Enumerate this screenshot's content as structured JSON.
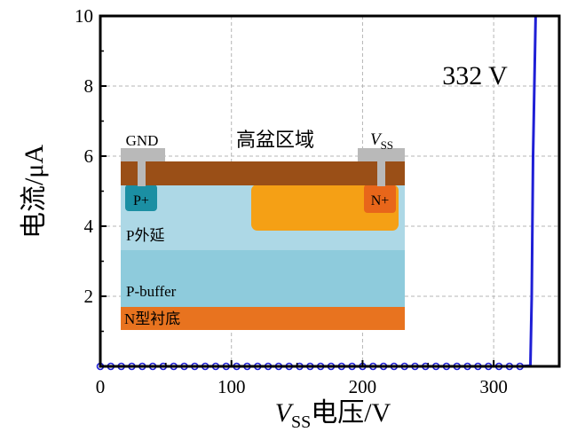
{
  "chart_data": {
    "type": "line",
    "xlabel": {
      "symbol": "V",
      "subscript": "SS",
      "text": "电压/V"
    },
    "ylabel": "电流/μA",
    "xlim": [
      0,
      350
    ],
    "ylim": [
      0,
      10
    ],
    "xticks": [
      "0",
      "100",
      "200",
      "300"
    ],
    "yticks": [
      "2",
      "4",
      "6",
      "8",
      "10"
    ],
    "grid": true,
    "annotation": "332 V",
    "series": [
      {
        "color": "#1f1fd6",
        "marker": "circle",
        "x": [
          0,
          8,
          16,
          24,
          32,
          40,
          48,
          56,
          64,
          72,
          80,
          88,
          96,
          104,
          112,
          120,
          128,
          136,
          144,
          152,
          160,
          168,
          176,
          184,
          192,
          200,
          208,
          216,
          224,
          232,
          240,
          248,
          256,
          264,
          272,
          280,
          288,
          296,
          304,
          312,
          320,
          328,
          329,
          330,
          332
        ],
        "y": [
          0,
          0,
          0,
          0,
          0,
          0,
          0,
          0,
          0,
          0,
          0,
          0,
          0,
          0,
          0,
          0,
          0,
          0,
          0,
          0,
          0,
          0,
          0,
          0,
          0,
          0,
          0,
          0,
          0,
          0,
          0,
          0,
          0,
          0,
          0,
          0,
          0,
          0,
          0,
          0,
          0,
          0.02,
          2,
          6,
          10
        ]
      }
    ],
    "inset": {
      "title": "高盆区域",
      "left_contact": "GND",
      "right_contact": {
        "symbol": "V",
        "subscript": "SS"
      },
      "p_plus": "P+",
      "n_plus": "N+",
      "layers": [
        "P外延",
        "P-buffer",
        "N型衬底"
      ],
      "colors": {
        "metal": "#b9b9b9",
        "top_oxide": "#9a4f17",
        "p_epi": "#add8e6",
        "p_buffer": "#8ecbdc",
        "n_substrate": "#e8731f",
        "well": "#f5a015",
        "p_plus": "#1b8fa3",
        "n_plus": "#e8661a"
      }
    }
  }
}
